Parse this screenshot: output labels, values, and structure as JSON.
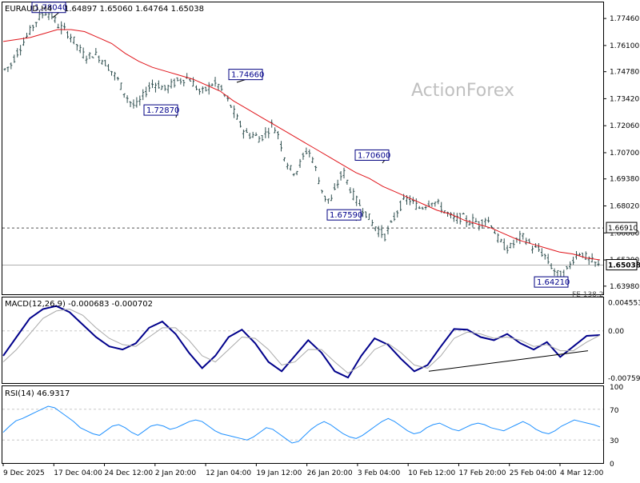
{
  "header": {
    "symbol": "EURAUD,H4",
    "ohlc": "1.64897 1.65060 1.64764 1.65038"
  },
  "watermark": "ActionForex",
  "colors": {
    "candle": "#2f4f4f",
    "ma": "#e0151b",
    "macd": "#00008b",
    "signal": "#a9a9a9",
    "rsi": "#1e90ff",
    "grid": "#c8c8c8",
    "label_border": "#000080"
  },
  "chart_data": [
    {
      "type": "candlestick",
      "panel": "price",
      "title": "EURAUD,H4",
      "ylim": [
        1.6357,
        1.7827
      ],
      "y_ticks": [
        "1.77460",
        "1.76100",
        "1.74780",
        "1.73420",
        "1.72060",
        "1.70700",
        "1.69380",
        "1.68020",
        "1.66660",
        "1.65300",
        "1.63980"
      ],
      "y_tick_values": [
        1.7746,
        1.761,
        1.7478,
        1.7342,
        1.7206,
        1.707,
        1.6938,
        1.6802,
        1.6666,
        1.653,
        1.6398
      ],
      "current_price_label": "1.65038",
      "current_price": 1.65038,
      "level_label": "1.66910",
      "level": 1.6691,
      "price_series": [
        1.749,
        1.751,
        1.757,
        1.762,
        1.767,
        1.772,
        1.776,
        1.778,
        1.776,
        1.771,
        1.769,
        1.766,
        1.762,
        1.757,
        1.755,
        1.757,
        1.755,
        1.752,
        1.748,
        1.744,
        1.738,
        1.733,
        1.73,
        1.734,
        1.739,
        1.742,
        1.741,
        1.739,
        1.741,
        1.743,
        1.744,
        1.745,
        1.741,
        1.737,
        1.739,
        1.742,
        1.741,
        1.736,
        1.731,
        1.725,
        1.719,
        1.716,
        1.716,
        1.714,
        1.717,
        1.721,
        1.717,
        1.706,
        1.699,
        1.697,
        1.703,
        1.709,
        1.703,
        1.692,
        1.684,
        1.683,
        1.691,
        1.698,
        1.69,
        1.684,
        1.68,
        1.676,
        1.671,
        1.668,
        1.665,
        1.67,
        1.677,
        1.682,
        1.684,
        1.681,
        1.679,
        1.681,
        1.683,
        1.681,
        1.678,
        1.675,
        1.673,
        1.675,
        1.672,
        1.673,
        1.671,
        1.674,
        1.671,
        1.664,
        1.66,
        1.659,
        1.662,
        1.665,
        1.663,
        1.659,
        1.658,
        1.655,
        1.65,
        1.646,
        1.645,
        1.649,
        1.655,
        1.657,
        1.654,
        1.652,
        1.65
      ],
      "ma_series": [
        1.763,
        1.764,
        1.765,
        1.767,
        1.769,
        1.769,
        1.768,
        1.765,
        1.762,
        1.757,
        1.753,
        1.75,
        1.748,
        1.746,
        1.744,
        1.741,
        1.738,
        1.733,
        1.729,
        1.725,
        1.721,
        1.717,
        1.713,
        1.709,
        1.705,
        1.701,
        1.697,
        1.694,
        1.69,
        1.687,
        1.684,
        1.681,
        1.678,
        1.676,
        1.673,
        1.671,
        1.669,
        1.666,
        1.663,
        1.661,
        1.659,
        1.657,
        1.656,
        1.654,
        1.653
      ],
      "annotations": [
        {
          "label": "1.78040",
          "value": 1.7804
        },
        {
          "label": "1.72870",
          "value": 1.7287
        },
        {
          "label": "1.74660",
          "value": 1.7466
        },
        {
          "label": "1.70600",
          "value": 1.706
        },
        {
          "label": "1.67590",
          "value": 1.6759
        },
        {
          "label": "1.64210",
          "value": 1.6421
        }
      ],
      "partial_label": "FE 138.2"
    },
    {
      "type": "line",
      "panel": "macd",
      "title": "MACD(12,26,9) -0.000683 -0.000702",
      "ylim": [
        -0.00839,
        0.00537
      ],
      "y_ticks": [
        "0.004553",
        "0.00",
        "-0.007593"
      ],
      "y_tick_values": [
        0.004553,
        0.0,
        -0.007593
      ],
      "series": [
        {
          "key": "macd",
          "values": [
            -0.004,
            -0.001,
            0.002,
            0.0035,
            0.004,
            0.003,
            0.001,
            -0.001,
            -0.0025,
            -0.003,
            -0.002,
            0.0005,
            0.0015,
            -0.0005,
            -0.0035,
            -0.006,
            -0.004,
            -0.001,
            0.0002,
            -0.002,
            -0.005,
            -0.0065,
            -0.004,
            -0.0015,
            -0.0035,
            -0.0065,
            -0.0075,
            -0.004,
            -0.0012,
            -0.0022,
            -0.0045,
            -0.0065,
            -0.0055,
            -0.0025,
            0.0003,
            0.0002,
            -0.001,
            -0.0015,
            -0.0005,
            -0.002,
            -0.003,
            -0.0018,
            -0.0042,
            -0.0025,
            -0.0008,
            -0.00068
          ]
        },
        {
          "key": "signal",
          "values": [
            -0.005,
            -0.003,
            -0.0005,
            0.002,
            0.0032,
            0.0035,
            0.0025,
            0.0005,
            -0.0012,
            -0.0022,
            -0.0025,
            -0.001,
            0.0005,
            0.0005,
            -0.0015,
            -0.004,
            -0.005,
            -0.003,
            -0.001,
            -0.0012,
            -0.003,
            -0.0055,
            -0.005,
            -0.003,
            -0.003,
            -0.005,
            -0.0068,
            -0.0055,
            -0.003,
            -0.002,
            -0.0035,
            -0.0055,
            -0.006,
            -0.004,
            -0.0012,
            -0.0002,
            -0.0005,
            -0.0012,
            -0.001,
            -0.0015,
            -0.0025,
            -0.0022,
            -0.0032,
            -0.0032,
            -0.0018,
            -0.0007
          ]
        }
      ],
      "trendline": [
        -0.0065,
        -0.0032
      ]
    },
    {
      "type": "line",
      "panel": "rsi",
      "title": "RSI(14) 46.9317",
      "ylim": [
        0,
        100
      ],
      "y_ticks": [
        "100",
        "70",
        "30",
        "0"
      ],
      "y_tick_values": [
        100,
        70,
        30,
        0
      ],
      "series": [
        {
          "key": "rsi",
          "values": [
            40,
            48,
            55,
            58,
            62,
            66,
            70,
            74,
            72,
            66,
            60,
            54,
            46,
            42,
            38,
            36,
            42,
            48,
            50,
            46,
            40,
            36,
            42,
            48,
            50,
            48,
            44,
            46,
            50,
            54,
            56,
            54,
            48,
            42,
            38,
            36,
            34,
            32,
            30,
            34,
            40,
            46,
            44,
            38,
            32,
            26,
            28,
            36,
            44,
            50,
            54,
            50,
            44,
            38,
            34,
            32,
            36,
            42,
            48,
            54,
            58,
            54,
            48,
            42,
            38,
            40,
            46,
            50,
            52,
            48,
            44,
            42,
            46,
            50,
            52,
            50,
            46,
            44,
            42,
            46,
            50,
            54,
            50,
            44,
            40,
            38,
            42,
            48,
            52,
            56,
            54,
            52,
            50,
            47
          ]
        }
      ]
    }
  ],
  "x_axis": {
    "labels": [
      "9 Dec 2025",
      "17 Dec 04:00",
      "24 Dec 12:00",
      "2 Jan 20:00",
      "12 Jan 04:00",
      "19 Jan 12:00",
      "26 Jan 20:00",
      "3 Feb 04:00",
      "10 Feb 12:00",
      "17 Feb 20:00",
      "25 Feb 04:00",
      "4 Mar 12:00"
    ]
  }
}
